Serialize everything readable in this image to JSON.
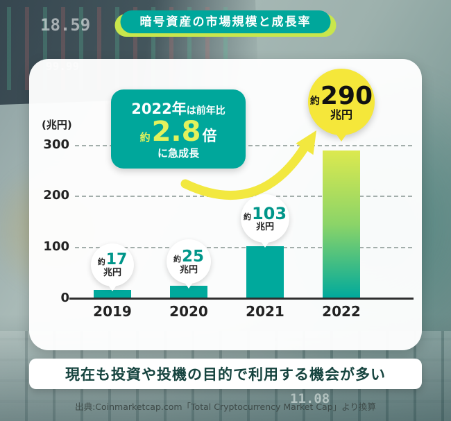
{
  "badge": {
    "label": "暗号資産の市場規模と成長率"
  },
  "chart_data": {
    "type": "bar",
    "title": "暗号資産の市場規模と成長率",
    "unit_label": "(兆円)",
    "categories": [
      "2019",
      "2020",
      "2021",
      "2022"
    ],
    "values": [
      17,
      25,
      103,
      290
    ],
    "ylim": [
      0,
      300
    ],
    "yticks": [
      "300",
      "200",
      "100",
      "0"
    ],
    "grid": "dashed-horizontal",
    "legend": "none",
    "bar_color": "#00A99C",
    "highlight": {
      "category": "2022",
      "bar_gradient": [
        "#00A99C",
        "#8BD468",
        "#DCE94F"
      ]
    },
    "labels": [
      {
        "prefix": "約",
        "number": "17",
        "suffix": "兆円",
        "style": "white-circle"
      },
      {
        "prefix": "約",
        "number": "25",
        "suffix": "兆円",
        "style": "white-circle"
      },
      {
        "prefix": "約",
        "number": "103",
        "suffix": "兆円",
        "style": "white-circle"
      },
      {
        "prefix": "約",
        "number": "290",
        "suffix": "兆円",
        "style": "yellow-circle"
      }
    ]
  },
  "callout": {
    "line1_strong": "2022年",
    "line1_rest": "は前年比",
    "approx": "約",
    "multiplier": "2.8",
    "times": "倍",
    "line3": "に急成長"
  },
  "footer": {
    "message": "現在も投資や投機の目的で利用する機会が多い",
    "source": "出典:Coinmarketcap.com「Total Cryptocurrency Market Cap」より換算"
  },
  "background_numbers": [
    "18.59",
    "99.99",
    "11.08"
  ],
  "colors": {
    "teal": "#00A79B",
    "yellow_accent": "#C9E64C",
    "yellow_circle": "#F5E73A",
    "arrow_yellow": "#F2E83F",
    "number_teal": "#00968A",
    "message_text": "#16443F"
  }
}
